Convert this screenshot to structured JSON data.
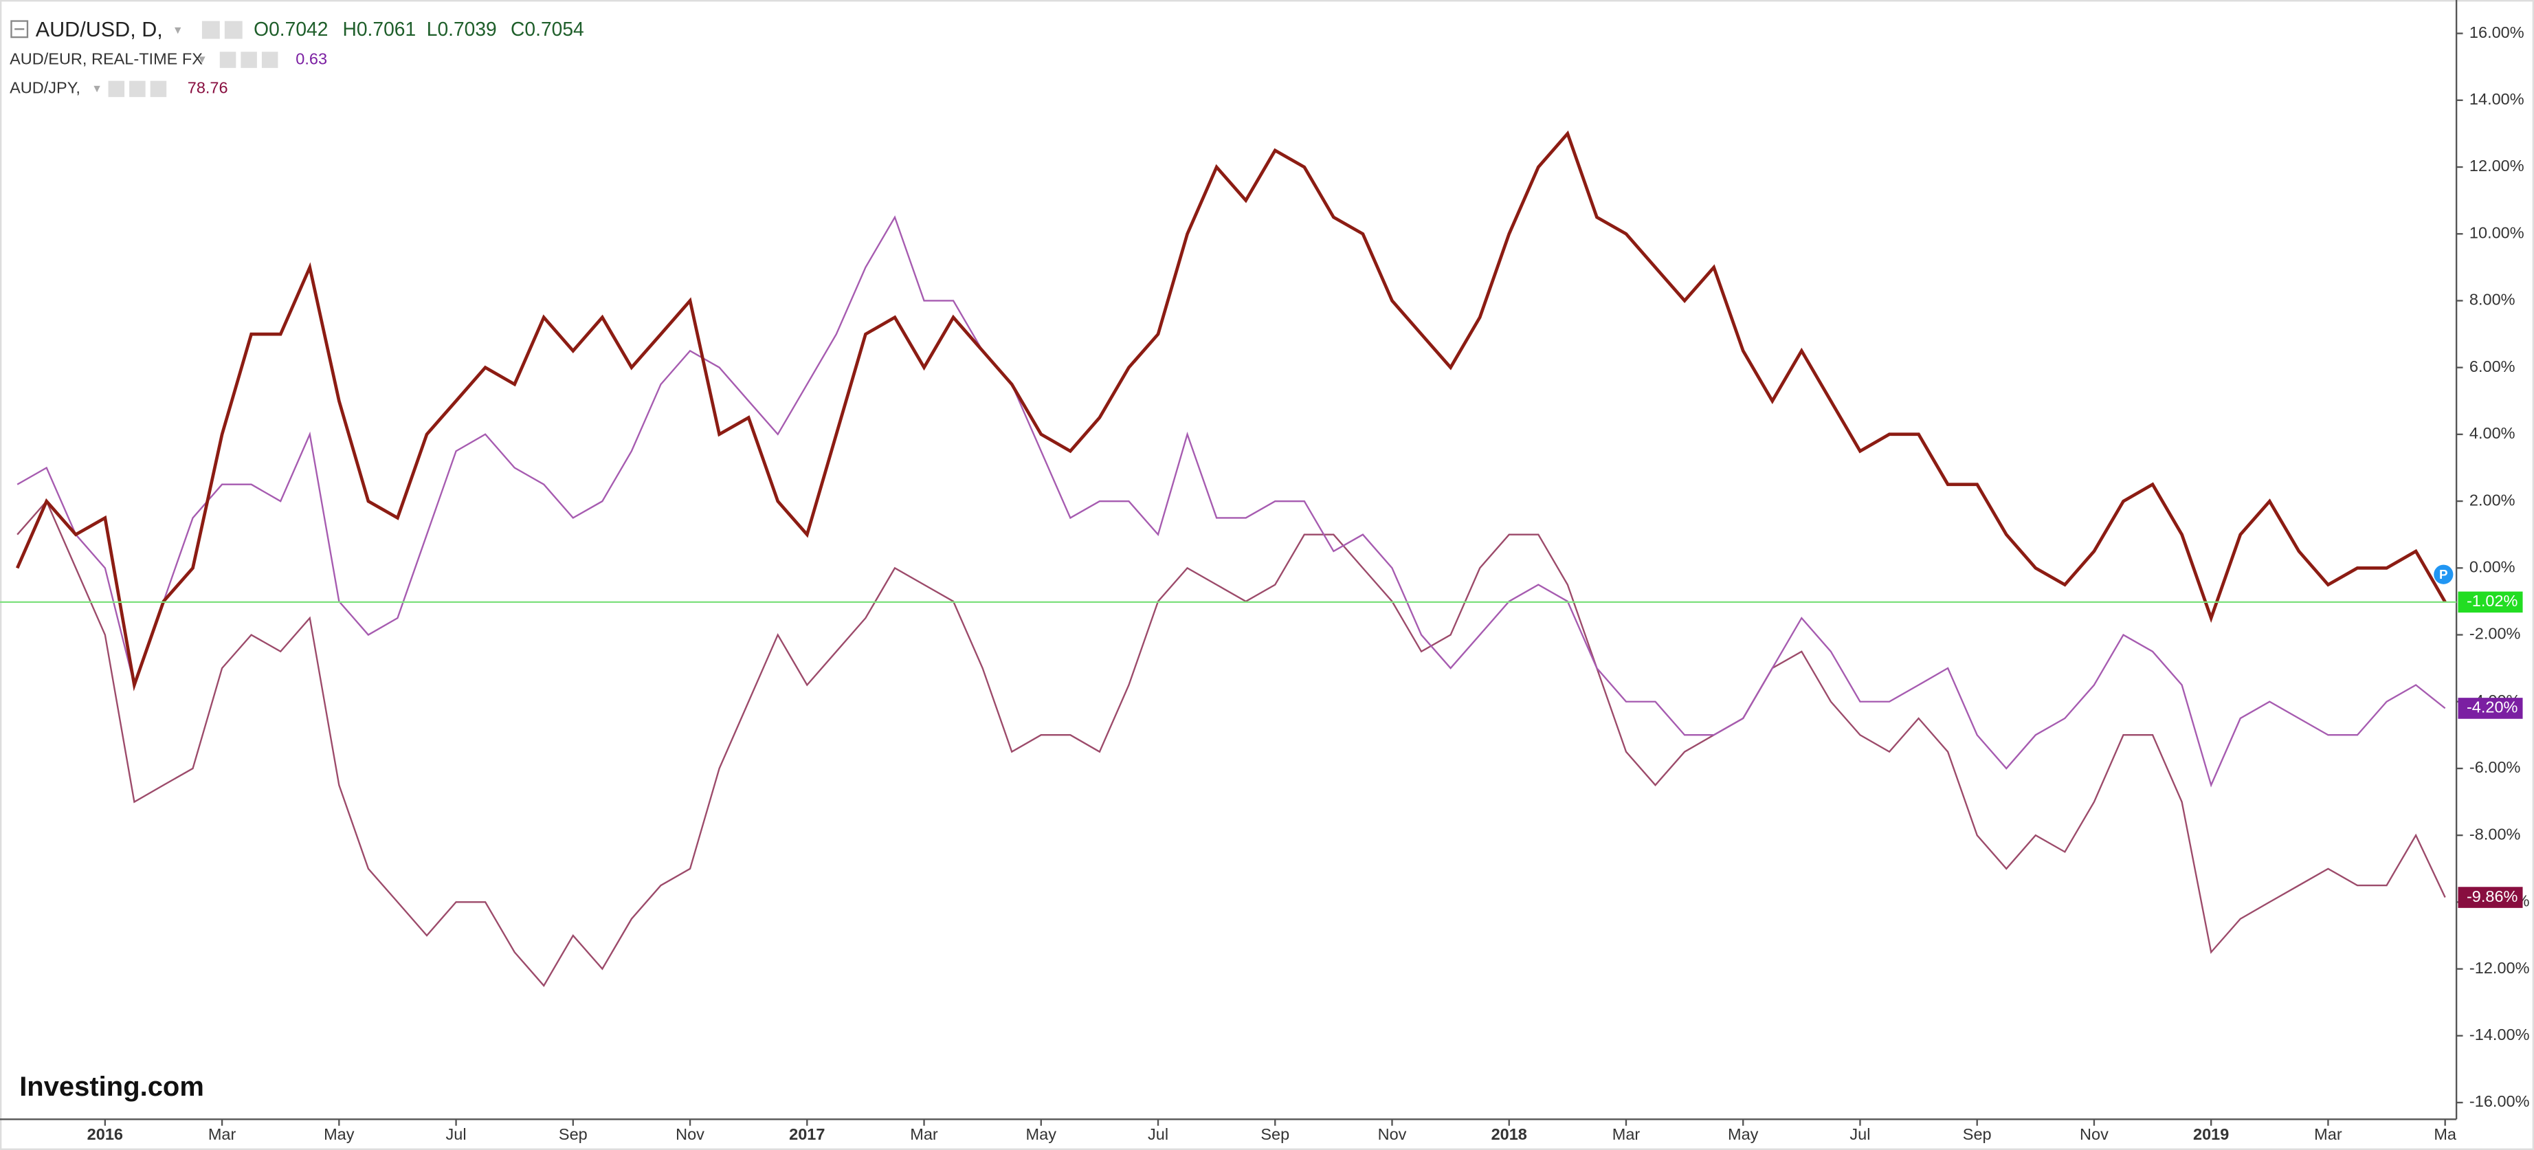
{
  "chart_data": {
    "type": "line",
    "ohlc_labels": [
      "O0.7042",
      "H0.7061",
      "L0.7039",
      "C0.7054"
    ],
    "watermark": "Investing.com",
    "categories": [
      null,
      null,
      null,
      "2016",
      null,
      null,
      null,
      "Mar",
      null,
      null,
      null,
      "May",
      null,
      null,
      null,
      "Jul",
      null,
      null,
      null,
      "Sep",
      null,
      null,
      null,
      "Nov",
      null,
      null,
      null,
      "2017",
      null,
      null,
      null,
      "Mar",
      null,
      null,
      null,
      "May",
      null,
      null,
      null,
      "Jul",
      null,
      null,
      null,
      "Sep",
      null,
      null,
      null,
      "Nov",
      null,
      null,
      null,
      "2018",
      null,
      null,
      null,
      "Mar",
      null,
      null,
      null,
      "May",
      null,
      null,
      null,
      "Jul",
      null,
      null,
      null,
      "Sep",
      null,
      null,
      null,
      "Nov",
      null,
      null,
      null,
      "2019",
      null,
      null,
      null,
      "Mar",
      null,
      null,
      null,
      "Ma"
    ],
    "series": [
      {
        "name": "AUD/USD, D,",
        "color": "#8c1c13",
        "badge_color": "#22dd22",
        "end_label": "-1.02%",
        "values": [
          0,
          2,
          1,
          1.5,
          -3.5,
          -1,
          0,
          4,
          7,
          7,
          9,
          5,
          2,
          1.5,
          4,
          5,
          6,
          5.5,
          7.5,
          6.5,
          7.5,
          6,
          7,
          8,
          4,
          4.5,
          2,
          1,
          4,
          7,
          7.5,
          6,
          7.5,
          6.5,
          5.5,
          4,
          3.5,
          4.5,
          6,
          7,
          10,
          12,
          11,
          12.5,
          12,
          10.5,
          10,
          8,
          7,
          6,
          7.5,
          10,
          12,
          13,
          10.5,
          10,
          9,
          8,
          9,
          6.5,
          5,
          6.5,
          5,
          3.5,
          4,
          4,
          2.5,
          2.5,
          1,
          0,
          -0.5,
          0.5,
          2,
          2.5,
          1,
          -1.5,
          1,
          2,
          0.5,
          -0.5,
          0,
          0,
          0.5,
          -1.02
        ]
      },
      {
        "name": "AUD/EUR, REAL-TIME FX",
        "quote": "0.63",
        "color": "#a65bb0",
        "badge_color": "#7b1fa2",
        "end_label": "-4.20%",
        "values": [
          2.5,
          3,
          1,
          0,
          -3.5,
          -1,
          1.5,
          2.5,
          2.5,
          2,
          4,
          -1,
          -2,
          -1.5,
          1,
          3.5,
          4,
          3,
          2.5,
          1.5,
          2,
          3.5,
          5.5,
          6.5,
          6,
          5,
          4,
          5.5,
          7,
          9,
          10.5,
          8,
          8,
          6.5,
          5.5,
          3.5,
          1.5,
          2,
          2,
          1,
          4,
          1.5,
          1.5,
          2,
          2,
          0.5,
          1,
          0,
          -2,
          -3,
          -2,
          -1,
          -0.5,
          -1,
          -3,
          -4,
          -4,
          -5,
          -5,
          -4.5,
          -3,
          -1.5,
          -2.5,
          -4,
          -4,
          -3.5,
          -3,
          -5,
          -6,
          -5,
          -4.5,
          -3.5,
          -2,
          -2.5,
          -3.5,
          -6.5,
          -4.5,
          -4,
          -4.5,
          -5,
          -5,
          -4,
          -3.5,
          -4.2
        ]
      },
      {
        "name": "AUD/JPY,",
        "quote": "78.76",
        "color": "#9c4a6a",
        "badge_color": "#880e3f",
        "end_label": "-9.86%",
        "values": [
          1,
          2,
          0,
          -2,
          -7,
          -6.5,
          -6,
          -3,
          -2,
          -2.5,
          -1.5,
          -6.5,
          -9,
          -10,
          -11,
          -10,
          -10,
          -11.5,
          -12.5,
          -11,
          -12,
          -10.5,
          -9.5,
          -9,
          -6,
          -4,
          -2,
          -3.5,
          -2.5,
          -1.5,
          0,
          -0.5,
          -1,
          -3,
          -5.5,
          -5,
          -5,
          -5.5,
          -3.5,
          -1,
          0,
          -0.5,
          -1,
          -0.5,
          1,
          1,
          0,
          -1,
          -2.5,
          -2,
          0,
          1,
          1,
          -0.5,
          -3,
          -5.5,
          -6.5,
          -5.5,
          -5,
          -4.5,
          -3,
          -2.5,
          -4,
          -5,
          -5.5,
          -4.5,
          -5.5,
          -8,
          -9,
          -8,
          -8.5,
          -7,
          -5,
          -5,
          -7,
          -11.5,
          -10.5,
          -10,
          -9.5,
          -9,
          -9.5,
          -9.5,
          -8,
          -9.86
        ]
      }
    ],
    "ylim": [
      -16.5,
      17
    ],
    "yticks": [
      {
        "value": 16,
        "label": "16.00%"
      },
      {
        "value": 14,
        "label": "14.00%"
      },
      {
        "value": 12,
        "label": "12.00%"
      },
      {
        "value": 10,
        "label": "10.00%"
      },
      {
        "value": 8,
        "label": "8.00%"
      },
      {
        "value": 6,
        "label": "6.00%"
      },
      {
        "value": 4,
        "label": "4.00%"
      },
      {
        "value": 2,
        "label": "2.00%"
      },
      {
        "value": 0,
        "label": "0.00%"
      },
      {
        "value": -2,
        "label": "-2.00%"
      },
      {
        "value": -4,
        "label": "-4.00%"
      },
      {
        "value": -6,
        "label": "-6.00%"
      },
      {
        "value": -8,
        "label": "-8.00%"
      },
      {
        "value": -10,
        "label": "-10.00%"
      },
      {
        "value": -12,
        "label": "-12.00%"
      },
      {
        "value": -14,
        "label": "-14.00%"
      },
      {
        "value": -16,
        "label": "-16.00%"
      }
    ],
    "grid": false
  }
}
